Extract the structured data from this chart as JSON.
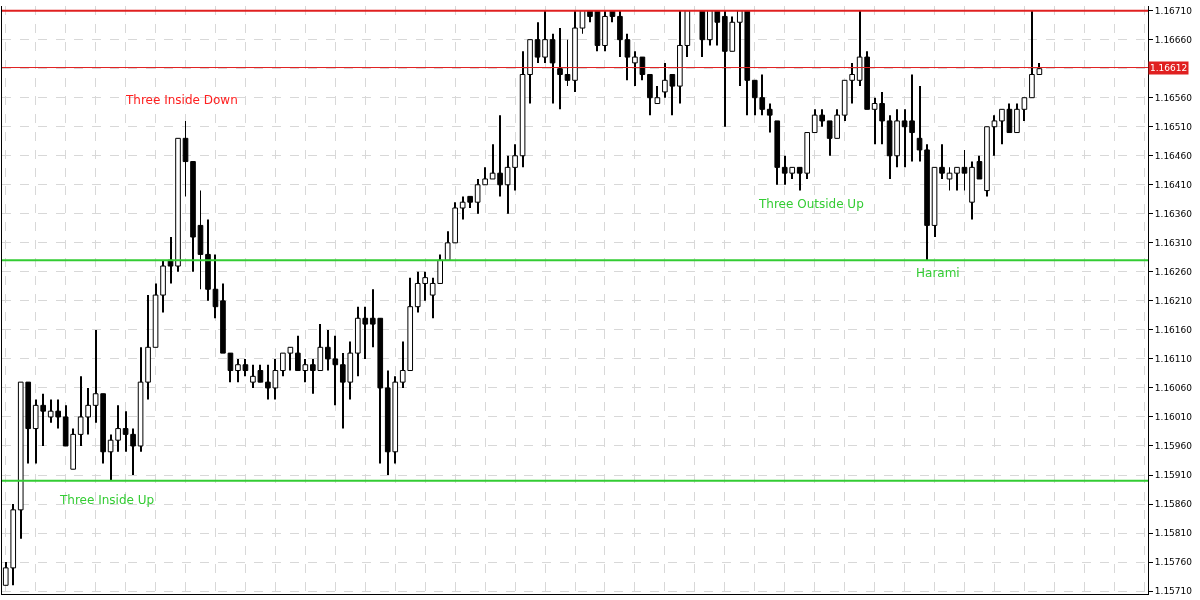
{
  "chart_data": {
    "type": "candlestick",
    "categories": [
      null,
      null,
      null,
      null,
      null,
      null,
      null,
      null,
      null,
      null,
      null,
      null,
      null,
      null,
      null,
      null,
      null,
      null,
      null,
      null,
      null,
      null,
      null,
      null,
      null,
      null,
      null,
      null,
      null,
      null,
      null,
      null,
      null,
      null,
      null,
      null,
      null,
      null,
      null,
      null,
      null,
      null,
      null,
      null,
      null,
      null,
      null,
      null,
      null,
      null,
      null,
      null,
      null,
      null,
      null,
      null,
      null,
      null,
      null,
      null,
      null,
      null,
      null,
      null,
      null,
      null,
      null,
      null,
      null,
      null,
      null,
      null,
      null,
      null,
      null,
      null,
      null,
      null,
      null,
      null,
      null,
      null,
      null,
      null,
      null,
      null,
      null,
      null,
      null,
      null,
      null,
      null,
      null,
      null,
      null,
      null,
      null,
      null,
      null,
      null,
      null,
      null,
      null,
      null,
      null,
      null,
      null,
      null,
      null,
      null,
      null,
      null,
      null,
      null,
      null,
      null,
      null,
      null,
      null,
      null,
      null,
      null,
      null,
      null,
      null,
      null,
      null,
      null,
      null,
      null,
      null,
      null,
      null,
      null,
      null,
      null,
      null,
      null,
      null,
      null,
      null,
      null,
      null,
      null,
      null,
      null,
      null,
      null,
      null,
      null,
      null,
      null,
      null
    ],
    "ohlc": [
      [
        1.1572,
        1.1576,
        1.1572,
        1.1575
      ],
      [
        1.1575,
        1.1586,
        1.1572,
        1.1585
      ],
      [
        1.1585,
        1.1607,
        1.158,
        1.1607
      ],
      [
        1.1607,
        1.1607,
        1.1593,
        1.1599
      ],
      [
        1.1599,
        1.1604,
        1.1593,
        1.1603
      ],
      [
        1.1603,
        1.1605,
        1.1596,
        1.1602
      ],
      [
        1.1601,
        1.1604,
        1.16,
        1.1602
      ],
      [
        1.1602,
        1.1604,
        1.1599,
        1.1601
      ],
      [
        1.1601,
        1.1603,
        1.1596,
        1.1596
      ],
      [
        1.1592,
        1.1599,
        1.1592,
        1.1598
      ],
      [
        1.1598,
        1.1608,
        1.1596,
        1.1601
      ],
      [
        1.1601,
        1.1606,
        1.1598,
        1.1603
      ],
      [
        1.1603,
        1.1616,
        1.16,
        1.1605
      ],
      [
        1.1605,
        1.1605,
        1.1593,
        1.1595
      ],
      [
        1.1595,
        1.1598,
        1.159,
        1.1597
      ],
      [
        1.1597,
        1.1603,
        1.1595,
        1.1599
      ],
      [
        1.1599,
        1.1602,
        1.1595,
        1.1598
      ],
      [
        1.1598,
        1.1599,
        1.1591,
        1.1596
      ],
      [
        1.1596,
        1.1613,
        1.1595,
        1.1607
      ],
      [
        1.1607,
        1.1622,
        1.1604,
        1.1613
      ],
      [
        1.1613,
        1.1624,
        1.1613,
        1.1622
      ],
      [
        1.1622,
        1.1628,
        1.1619,
        1.1627
      ],
      [
        1.1628,
        1.1632,
        1.1624,
        1.1627
      ],
      [
        1.1627,
        1.1649,
        1.1626,
        1.1649
      ],
      [
        1.1649,
        1.1652,
        1.1639,
        1.1645
      ],
      [
        1.1645,
        1.1645,
        1.1626,
        1.1632
      ],
      [
        1.1634,
        1.164,
        1.1623,
        1.1629
      ],
      [
        1.1629,
        1.1635,
        1.1621,
        1.1623
      ],
      [
        1.1623,
        1.1629,
        1.1618,
        1.162
      ],
      [
        1.1621,
        1.1624,
        1.1612,
        1.1612
      ],
      [
        1.1612,
        1.1612,
        1.1607,
        1.1609
      ],
      [
        1.1609,
        1.1611,
        1.1607,
        1.161
      ],
      [
        1.161,
        1.1611,
        1.1608,
        1.1609
      ],
      [
        1.1607,
        1.161,
        1.1606,
        1.1608
      ],
      [
        1.1609,
        1.161,
        1.1607,
        1.1607
      ],
      [
        1.1607,
        1.161,
        1.1604,
        1.1606
      ],
      [
        1.1606,
        1.1611,
        1.1604,
        1.1609
      ],
      [
        1.1609,
        1.1612,
        1.1608,
        1.1612
      ],
      [
        1.1612,
        1.1613,
        1.1609,
        1.1613
      ],
      [
        1.1612,
        1.1615,
        1.1609,
        1.1609
      ],
      [
        1.1609,
        1.1611,
        1.1607,
        1.161
      ],
      [
        1.161,
        1.1611,
        1.1605,
        1.1609
      ],
      [
        1.1609,
        1.1617,
        1.1609,
        1.1613
      ],
      [
        1.1613,
        1.1616,
        1.1609,
        1.1611
      ],
      [
        1.1611,
        1.1615,
        1.1603,
        1.161
      ],
      [
        1.161,
        1.1612,
        1.1599,
        1.1607
      ],
      [
        1.1607,
        1.1614,
        1.1604,
        1.1612
      ],
      [
        1.1612,
        1.162,
        1.1608,
        1.1618
      ],
      [
        1.1618,
        1.162,
        1.1611,
        1.1617
      ],
      [
        1.1618,
        1.1623,
        1.1613,
        1.1617
      ],
      [
        1.1618,
        1.1618,
        1.1593,
        1.1606
      ],
      [
        1.1606,
        1.1609,
        1.1591,
        1.1595
      ],
      [
        1.1595,
        1.1608,
        1.1593,
        1.1607
      ],
      [
        1.1607,
        1.1614,
        1.1606,
        1.1609
      ],
      [
        1.1609,
        1.1625,
        1.1609,
        1.162
      ],
      [
        1.162,
        1.1626,
        1.1619,
        1.1624
      ],
      [
        1.1624,
        1.1626,
        1.1621,
        1.1625
      ],
      [
        1.1622,
        1.1625,
        1.1618,
        1.1624
      ],
      [
        1.1624,
        1.1629,
        1.1624,
        1.1628
      ],
      [
        1.1628,
        1.1633,
        1.1628,
        1.1631
      ],
      [
        1.1631,
        1.1638,
        1.1631,
        1.1637
      ],
      [
        1.1637,
        1.1639,
        1.1635,
        1.1638
      ],
      [
        1.1639,
        1.1639,
        1.1637,
        1.1638
      ],
      [
        1.1638,
        1.1642,
        1.1636,
        1.1641
      ],
      [
        1.1641,
        1.1644,
        1.1641,
        1.1642
      ],
      [
        1.1642,
        1.1648,
        1.1642,
        1.1643
      ],
      [
        1.1643,
        1.1653,
        1.1639,
        1.1641
      ],
      [
        1.1641,
        1.1646,
        1.1636,
        1.1644
      ],
      [
        1.1644,
        1.1648,
        1.164,
        1.1646
      ],
      [
        1.1646,
        1.1664,
        1.1644,
        1.166
      ],
      [
        1.166,
        1.1666,
        1.1655,
        1.1666
      ],
      [
        1.1666,
        1.1669,
        1.1662,
        1.1663
      ],
      [
        1.1663,
        1.1671,
        1.1662,
        1.1666
      ],
      [
        1.1666,
        1.1667,
        1.1655,
        1.1662
      ],
      [
        1.1661,
        1.1668,
        1.1654,
        1.166
      ],
      [
        1.166,
        1.1666,
        1.1658,
        1.1659
      ],
      [
        1.1659,
        1.1671,
        1.1657,
        1.1668
      ],
      [
        1.1668,
        1.1671,
        1.1667,
        1.1671
      ],
      [
        1.1671,
        1.1671,
        1.1669,
        1.167
      ],
      [
        1.1671,
        1.1671,
        1.1664,
        1.1665
      ],
      [
        1.1665,
        1.1671,
        1.1664,
        1.167
      ],
      [
        1.1671,
        1.1671,
        1.1669,
        1.167
      ],
      [
        1.167,
        1.1671,
        1.1663,
        1.1666
      ],
      [
        1.1666,
        1.1667,
        1.1659,
        1.1663
      ],
      [
        1.1662,
        1.1664,
        1.1658,
        1.1663
      ],
      [
        1.1663,
        1.1663,
        1.1659,
        1.166
      ],
      [
        1.166,
        1.166,
        1.1653,
        1.1656
      ],
      [
        1.1655,
        1.1658,
        1.1655,
        1.1656
      ],
      [
        1.1657,
        1.1662,
        1.1656,
        1.1659
      ],
      [
        1.166,
        1.166,
        1.1653,
        1.1658
      ],
      [
        1.1658,
        1.1671,
        1.1655,
        1.1665
      ],
      [
        1.1665,
        1.1671,
        1.1663,
        1.1671
      ],
      null,
      [
        1.1671,
        1.1671,
        1.1663,
        1.1666
      ],
      [
        1.1666,
        1.1671,
        1.1665,
        1.1671
      ],
      [
        1.1671,
        1.1671,
        1.1665,
        1.1669
      ],
      [
        1.167,
        1.1671,
        1.1651,
        1.1664
      ],
      [
        1.1664,
        1.167,
        1.1664,
        1.1669
      ],
      [
        1.1669,
        1.1671,
        1.1658,
        1.1671
      ],
      [
        1.1671,
        1.1671,
        1.1653,
        1.1659
      ],
      [
        1.1659,
        1.1659,
        1.1653,
        1.1656
      ],
      [
        1.1656,
        1.166,
        1.1653,
        1.1654
      ],
      [
        1.1654,
        1.1655,
        1.165,
        1.1653
      ],
      [
        1.1652,
        1.1652,
        1.1641,
        1.1644
      ],
      [
        1.1644,
        1.1646,
        1.1641,
        1.1643
      ],
      [
        1.1643,
        1.1644,
        1.1642,
        1.1644
      ],
      [
        1.1644,
        1.1644,
        1.164,
        1.1643
      ],
      [
        1.1643,
        1.165,
        1.1642,
        1.165
      ],
      [
        1.165,
        1.1654,
        1.165,
        1.1653
      ],
      [
        1.1653,
        1.1654,
        1.1651,
        1.1652
      ],
      [
        1.1652,
        1.1652,
        1.1646,
        1.1649
      ],
      [
        1.1649,
        1.1654,
        1.1649,
        1.1653
      ],
      [
        1.1653,
        1.1659,
        1.1652,
        1.1659
      ],
      [
        1.1659,
        1.1662,
        1.1655,
        1.166
      ],
      [
        1.1659,
        1.1671,
        1.1658,
        1.1663
      ],
      [
        1.1663,
        1.1664,
        1.1654,
        1.1654
      ],
      [
        1.1654,
        1.1656,
        1.1648,
        1.1655
      ],
      [
        1.1655,
        1.1657,
        1.1648,
        1.1652
      ],
      [
        1.1652,
        1.1653,
        1.1642,
        1.1646
      ],
      [
        1.1646,
        1.1654,
        1.1644,
        1.1652
      ],
      [
        1.1652,
        1.1654,
        1.1644,
        1.1651
      ],
      [
        1.1652,
        1.166,
        1.1645,
        1.165
      ],
      [
        1.1649,
        1.1658,
        1.1645,
        1.1647
      ],
      [
        1.1647,
        1.1648,
        1.1628,
        1.1634
      ],
      [
        1.1634,
        1.1644,
        1.1632,
        1.1644
      ],
      [
        1.1644,
        1.1648,
        1.1642,
        1.1643
      ],
      [
        1.1642,
        1.1644,
        1.164,
        1.1643
      ],
      [
        1.1643,
        1.1644,
        1.164,
        1.1644
      ],
      [
        1.1644,
        1.1647,
        1.164,
        1.1643
      ],
      [
        1.1638,
        1.1645,
        1.1635,
        1.1644
      ],
      [
        1.1645,
        1.1646,
        1.1642,
        1.1642
      ],
      [
        1.164,
        1.1651,
        1.1639,
        1.1651
      ],
      [
        1.1651,
        1.1653,
        1.1646,
        1.1652
      ],
      [
        1.1652,
        1.1654,
        1.1648,
        1.1654
      ],
      [
        1.1654,
        1.1655,
        1.165,
        1.165
      ],
      [
        1.165,
        1.1655,
        1.165,
        1.1654
      ],
      [
        1.1654,
        1.1656,
        1.1652,
        1.1656
      ],
      [
        1.1656,
        1.1671,
        1.1656,
        1.166
      ],
      [
        1.166,
        1.1662,
        1.166,
        1.1661
      ],
      null,
      null,
      null,
      null,
      null,
      null,
      null,
      null,
      null,
      null,
      null,
      null,
      null,
      null
    ],
    "ylim": [
      1.15705,
      1.16718
    ],
    "yticks": [
      {
        "value": 1.1571,
        "label": "1.15710"
      },
      {
        "value": 1.1576,
        "label": "1.15760"
      },
      {
        "value": 1.1581,
        "label": "1.15810"
      },
      {
        "value": 1.1586,
        "label": "1.15860"
      },
      {
        "value": 1.1591,
        "label": "1.15910"
      },
      {
        "value": 1.1596,
        "label": "1.15960"
      },
      {
        "value": 1.1601,
        "label": "1.16010"
      },
      {
        "value": 1.1606,
        "label": "1.16060"
      },
      {
        "value": 1.1611,
        "label": "1.16110"
      },
      {
        "value": 1.1616,
        "label": "1.16160"
      },
      {
        "value": 1.1621,
        "label": "1.16210"
      },
      {
        "value": 1.1626,
        "label": "1.16260"
      },
      {
        "value": 1.1631,
        "label": "1.16310"
      },
      {
        "value": 1.1636,
        "label": "1.16360"
      },
      {
        "value": 1.1641,
        "label": "1.16410"
      },
      {
        "value": 1.1646,
        "label": "1.16460"
      },
      {
        "value": 1.1651,
        "label": "1.16510"
      },
      {
        "value": 1.1656,
        "label": "1.16560"
      },
      {
        "value": 1.1661,
        "label": null
      },
      {
        "value": 1.1666,
        "label": "1.16660"
      },
      {
        "value": 1.1671,
        "label": "1.16710"
      }
    ],
    "tick_labels": "y",
    "grid": true,
    "ref_lines": [
      {
        "axis": "y",
        "value": 1.16612,
        "label": "1.16612",
        "color": "#e02020"
      },
      {
        "axis": "y",
        "value": 1.159,
        "color": "#33cc33"
      },
      {
        "axis": "y",
        "value": 1.1628,
        "color": "#33cc33"
      },
      {
        "axis": "y",
        "value": 1.1671,
        "color": "#e02020"
      }
    ],
    "annotations": [
      "Three Inside Down",
      "Three Inside Up",
      "Three Outside Up",
      "Harami"
    ]
  }
}
